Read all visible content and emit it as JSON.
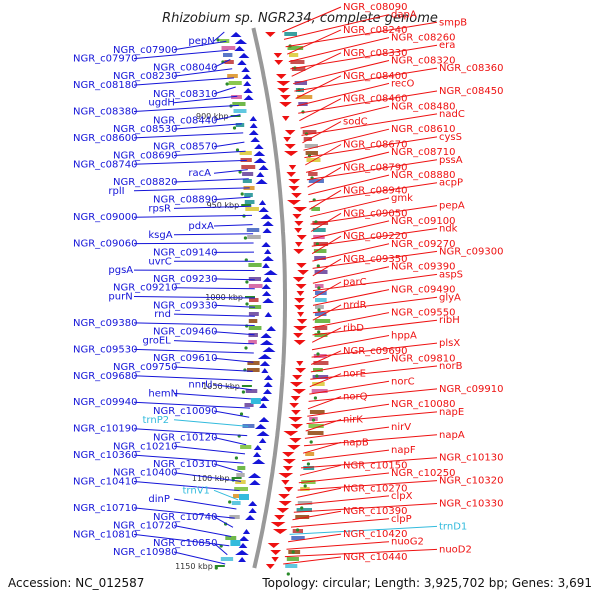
{
  "title": "Rhizobium sp. NGR234, complete genome",
  "footer": {
    "accession": "Accession: NC_012587",
    "topology": "Topology: circular; Length: 3,925,702 bp; Genes: 3,691"
  },
  "colors": {
    "forward": "#1515d8",
    "reverse": "#ee1111",
    "rna": "#33bbdd",
    "tick": "#2a8a2a"
  },
  "ticks": [
    "900 kbp",
    "950 kbp",
    "1000 kbp",
    "1050 kbp",
    "1100 kbp",
    "1150 kbp"
  ],
  "left_labels": [
    {
      "text": "pepN",
      "color": "forward"
    },
    {
      "text": "NGR_c07900",
      "color": "forward"
    },
    {
      "text": "NGR_c07970",
      "color": "forward"
    },
    {
      "text": "NGR_c08040",
      "color": "forward"
    },
    {
      "text": "NGR_c08230",
      "color": "forward"
    },
    {
      "text": "NGR_c08180",
      "color": "forward"
    },
    {
      "text": "NGR_c08310",
      "color": "forward"
    },
    {
      "text": "ugdH",
      "color": "forward"
    },
    {
      "text": "NGR_c08380",
      "color": "forward"
    },
    {
      "text": "NGR_c08440",
      "color": "forward"
    },
    {
      "text": "NGR_c08530",
      "color": "forward"
    },
    {
      "text": "NGR_c08600",
      "color": "forward"
    },
    {
      "text": "NGR_c08570",
      "color": "forward"
    },
    {
      "text": "NGR_c08690",
      "color": "forward"
    },
    {
      "text": "NGR_c08740",
      "color": "forward"
    },
    {
      "text": "racA",
      "color": "forward"
    },
    {
      "text": "NGR_c08820",
      "color": "forward"
    },
    {
      "text": "rplI",
      "color": "forward"
    },
    {
      "text": "NGR_c08890",
      "color": "forward"
    },
    {
      "text": "rpsR",
      "color": "forward"
    },
    {
      "text": "NGR_c09000",
      "color": "forward"
    },
    {
      "text": "pdxA",
      "color": "forward"
    },
    {
      "text": "ksgA",
      "color": "forward"
    },
    {
      "text": "NGR_c09060",
      "color": "forward"
    },
    {
      "text": "NGR_c09140",
      "color": "forward"
    },
    {
      "text": "uvrC",
      "color": "forward"
    },
    {
      "text": "pgsA",
      "color": "forward"
    },
    {
      "text": "NGR_c09230",
      "color": "forward"
    },
    {
      "text": "NGR_c09210",
      "color": "forward"
    },
    {
      "text": "purN",
      "color": "forward"
    },
    {
      "text": "NGR_c09330",
      "color": "forward"
    },
    {
      "text": "rnd",
      "color": "forward"
    },
    {
      "text": "NGR_c09380",
      "color": "forward"
    },
    {
      "text": "NGR_c09460",
      "color": "forward"
    },
    {
      "text": "groEL",
      "color": "forward"
    },
    {
      "text": "NGR_c09530",
      "color": "forward"
    },
    {
      "text": "NGR_c09610",
      "color": "forward"
    },
    {
      "text": "NGR_c09750",
      "color": "forward"
    },
    {
      "text": "NGR_c09680",
      "color": "forward"
    },
    {
      "text": "nnrU",
      "color": "forward"
    },
    {
      "text": "hemN",
      "color": "forward"
    },
    {
      "text": "NGR_c09940",
      "color": "forward"
    },
    {
      "text": "NGR_c10090",
      "color": "forward"
    },
    {
      "text": "trnP2",
      "color": "rna"
    },
    {
      "text": "NGR_c10190",
      "color": "forward"
    },
    {
      "text": "NGR_c10120",
      "color": "forward"
    },
    {
      "text": "NGR_c10210",
      "color": "forward"
    },
    {
      "text": "NGR_c10360",
      "color": "forward"
    },
    {
      "text": "NGR_c10310",
      "color": "forward"
    },
    {
      "text": "NGR_c10400",
      "color": "forward"
    },
    {
      "text": "NGR_c10410",
      "color": "forward"
    },
    {
      "text": "trnV1",
      "color": "rna"
    },
    {
      "text": "dinP",
      "color": "forward"
    },
    {
      "text": "NGR_c10710",
      "color": "forward"
    },
    {
      "text": "NGR_c10740",
      "color": "forward"
    },
    {
      "text": "NGR_c10720",
      "color": "forward"
    },
    {
      "text": "NGR_c10810",
      "color": "forward"
    },
    {
      "text": "NGR_c10850",
      "color": "forward"
    },
    {
      "text": "NGR_c10980",
      "color": "forward"
    }
  ],
  "right_labels": [
    {
      "text": "NGR_c08090",
      "color": "reverse"
    },
    {
      "text": "dapA",
      "color": "reverse"
    },
    {
      "text": "smpB",
      "color": "reverse"
    },
    {
      "text": "NGR_c08240",
      "color": "reverse"
    },
    {
      "text": "NGR_c08260",
      "color": "reverse"
    },
    {
      "text": "era",
      "color": "reverse"
    },
    {
      "text": "NGR_c08330",
      "color": "reverse"
    },
    {
      "text": "NGR_c08320",
      "color": "reverse"
    },
    {
      "text": "NGR_c08360",
      "color": "reverse"
    },
    {
      "text": "NGR_c08400",
      "color": "reverse"
    },
    {
      "text": "recO",
      "color": "reverse"
    },
    {
      "text": "NGR_c08450",
      "color": "reverse"
    },
    {
      "text": "NGR_c08460",
      "color": "reverse"
    },
    {
      "text": "NGR_c08480",
      "color": "reverse"
    },
    {
      "text": "nadC",
      "color": "reverse"
    },
    {
      "text": "sodC",
      "color": "reverse"
    },
    {
      "text": "NGR_c08610",
      "color": "reverse"
    },
    {
      "text": "cysS",
      "color": "reverse"
    },
    {
      "text": "NGR_c08670",
      "color": "reverse"
    },
    {
      "text": "NGR_c08710",
      "color": "reverse"
    },
    {
      "text": "pssA",
      "color": "reverse"
    },
    {
      "text": "NGR_c08790",
      "color": "reverse"
    },
    {
      "text": "NGR_c08880",
      "color": "reverse"
    },
    {
      "text": "acpP",
      "color": "reverse"
    },
    {
      "text": "NGR_c08940",
      "color": "reverse"
    },
    {
      "text": "gmk",
      "color": "reverse"
    },
    {
      "text": "pepA",
      "color": "reverse"
    },
    {
      "text": "NGR_c09050",
      "color": "reverse"
    },
    {
      "text": "NGR_c09100",
      "color": "reverse"
    },
    {
      "text": "ndk",
      "color": "reverse"
    },
    {
      "text": "NGR_c09220",
      "color": "reverse"
    },
    {
      "text": "NGR_c09270",
      "color": "reverse"
    },
    {
      "text": "NGR_c09300",
      "color": "reverse"
    },
    {
      "text": "NGR_c09350",
      "color": "reverse"
    },
    {
      "text": "NGR_c09390",
      "color": "reverse"
    },
    {
      "text": "aspS",
      "color": "reverse"
    },
    {
      "text": "parC",
      "color": "reverse"
    },
    {
      "text": "NGR_c09490",
      "color": "reverse"
    },
    {
      "text": "glyA",
      "color": "reverse"
    },
    {
      "text": "nrdR",
      "color": "reverse"
    },
    {
      "text": "NGR_c09550",
      "color": "reverse"
    },
    {
      "text": "ribH",
      "color": "reverse"
    },
    {
      "text": "ribD",
      "color": "reverse"
    },
    {
      "text": "hppA",
      "color": "reverse"
    },
    {
      "text": "plsX",
      "color": "reverse"
    },
    {
      "text": "NGR_c09690",
      "color": "reverse"
    },
    {
      "text": "NGR_c09810",
      "color": "reverse"
    },
    {
      "text": "norB",
      "color": "reverse"
    },
    {
      "text": "norE",
      "color": "reverse"
    },
    {
      "text": "norC",
      "color": "reverse"
    },
    {
      "text": "NGR_c09910",
      "color": "reverse"
    },
    {
      "text": "norQ",
      "color": "reverse"
    },
    {
      "text": "NGR_c10080",
      "color": "reverse"
    },
    {
      "text": "napE",
      "color": "reverse"
    },
    {
      "text": "nirK",
      "color": "reverse"
    },
    {
      "text": "nirV",
      "color": "reverse"
    },
    {
      "text": "napA",
      "color": "reverse"
    },
    {
      "text": "napB",
      "color": "reverse"
    },
    {
      "text": "napF",
      "color": "reverse"
    },
    {
      "text": "NGR_c10130",
      "color": "reverse"
    },
    {
      "text": "NGR_c10150",
      "color": "reverse"
    },
    {
      "text": "NGR_c10250",
      "color": "reverse"
    },
    {
      "text": "NGR_c10320",
      "color": "reverse"
    },
    {
      "text": "NGR_c10270",
      "color": "reverse"
    },
    {
      "text": "clpX",
      "color": "reverse"
    },
    {
      "text": "NGR_c10330",
      "color": "reverse"
    },
    {
      "text": "NGR_c10390",
      "color": "reverse"
    },
    {
      "text": "clpP",
      "color": "reverse"
    },
    {
      "text": "trnD1",
      "color": "rna"
    },
    {
      "text": "NGR_c10420",
      "color": "reverse"
    },
    {
      "text": "nuoG2",
      "color": "reverse"
    },
    {
      "text": "nuoD2",
      "color": "reverse"
    },
    {
      "text": "NGR_c10440",
      "color": "reverse"
    }
  ]
}
